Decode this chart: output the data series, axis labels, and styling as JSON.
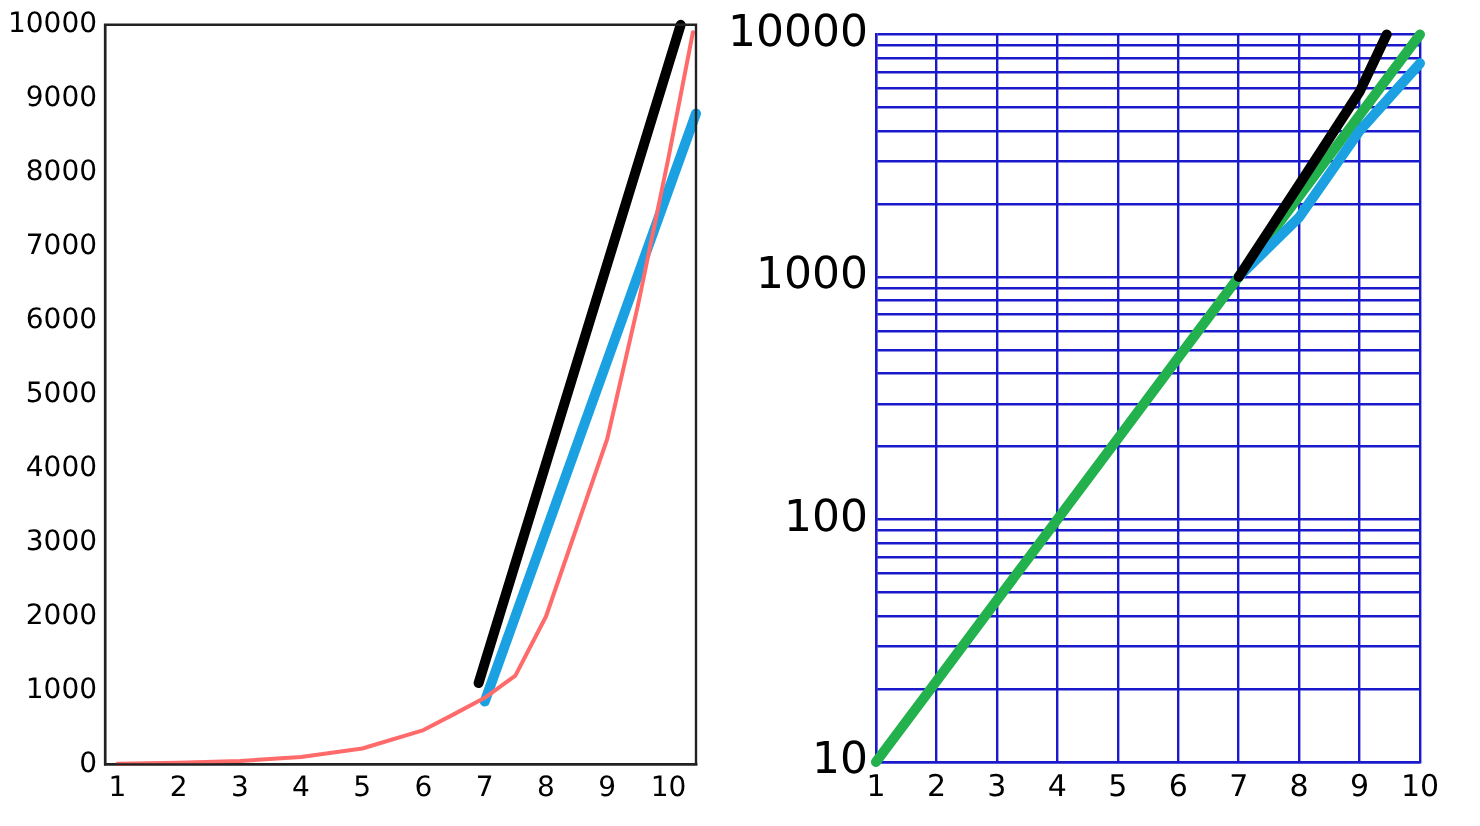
{
  "chart_data": [
    {
      "type": "line",
      "xlim": [
        0.8,
        10.45
      ],
      "xticks": [
        1,
        2,
        3,
        4,
        5,
        6,
        7,
        8,
        9,
        10
      ],
      "ylim": [
        0,
        10000
      ],
      "yticks": [
        0,
        1000,
        2000,
        3000,
        4000,
        5000,
        6000,
        7000,
        8000,
        9000,
        10000
      ],
      "grid": false,
      "legend": false,
      "marker": "none",
      "series": [
        {
          "color": "#ff6b6b",
          "x": [
            1,
            2,
            3,
            4,
            5,
            6,
            6.5,
            7,
            7.5,
            8,
            8.5,
            9,
            9.5,
            10,
            10.4
          ],
          "values": [
            10,
            22,
            46,
            100,
            215,
            464,
            680,
            900,
            1200,
            2000,
            3200,
            4400,
            6200,
            8200,
            9900
          ]
        },
        {
          "color": "#000000",
          "x": [
            6.9,
            10.2
          ],
          "values": [
            1100,
            10000
          ]
        },
        {
          "color": "#1ba1e2",
          "x": [
            7,
            10.45
          ],
          "values": [
            850,
            8800
          ]
        }
      ]
    },
    {
      "type": "line",
      "log": "y",
      "xlim": [
        1,
        10
      ],
      "xticks": [
        1,
        2,
        3,
        4,
        5,
        6,
        7,
        8,
        9,
        10
      ],
      "ylim": [
        10,
        10000
      ],
      "yticks": [
        10,
        {
          "value": 20,
          "label": null
        },
        {
          "value": 30,
          "label": null
        },
        {
          "value": 40,
          "label": null
        },
        {
          "value": 50,
          "label": null
        },
        {
          "value": 60,
          "label": null
        },
        {
          "value": 70,
          "label": null
        },
        {
          "value": 80,
          "label": null
        },
        {
          "value": 90,
          "label": null
        },
        100,
        {
          "value": 200,
          "label": null
        },
        {
          "value": 300,
          "label": null
        },
        {
          "value": 400,
          "label": null
        },
        {
          "value": 500,
          "label": null
        },
        {
          "value": 600,
          "label": null
        },
        {
          "value": 700,
          "label": null
        },
        {
          "value": 800,
          "label": null
        },
        {
          "value": 900,
          "label": null
        },
        1000,
        {
          "value": 2000,
          "label": null
        },
        {
          "value": 3000,
          "label": null
        },
        {
          "value": 4000,
          "label": null
        },
        {
          "value": 5000,
          "label": null
        },
        {
          "value": 6000,
          "label": null
        },
        {
          "value": 7000,
          "label": null
        },
        {
          "value": 8000,
          "label": null
        },
        {
          "value": 9000,
          "label": null
        },
        10000
      ],
      "grid": true,
      "legend": false,
      "marker": "none",
      "series": [
        {
          "color": "#000000",
          "x": [
            7,
            8,
            9,
            9.45
          ],
          "values": [
            1000,
            2400,
            5800,
            10000
          ]
        },
        {
          "color": "#1ba1e2",
          "x": [
            7,
            8,
            9,
            10
          ],
          "values": [
            1000,
            1760,
            4000,
            7600
          ]
        },
        {
          "color": "#22b14c",
          "x": [
            1,
            2,
            3,
            4,
            5,
            6,
            7,
            8,
            9,
            10
          ],
          "values": [
            10,
            21.5,
            46.4,
            100,
            215,
            464,
            1000,
            2150,
            4640,
            10000
          ]
        }
      ]
    }
  ]
}
